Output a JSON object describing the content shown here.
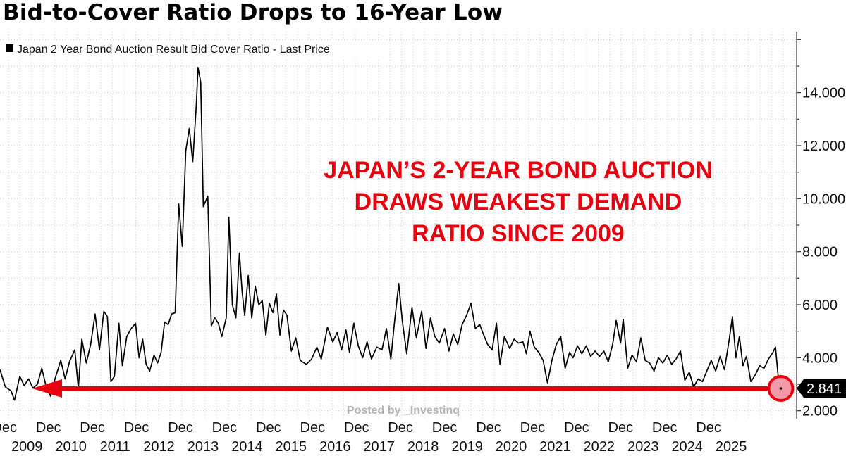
{
  "chart_data": {
    "type": "line",
    "title": "Bid-to-Cover Ratio Drops to 16-Year Low",
    "series": [
      {
        "name": "Japan 2 Year Bond Auction Result Bid Cover Ratio - Last Price",
        "color": "#000000",
        "points": [
          [
            2009.0,
            3.55
          ],
          [
            2009.12,
            2.9
          ],
          [
            2009.25,
            2.75
          ],
          [
            2009.33,
            2.4
          ],
          [
            2009.45,
            3.3
          ],
          [
            2009.55,
            2.95
          ],
          [
            2009.65,
            3.2
          ],
          [
            2009.75,
            2.85
          ],
          [
            2009.85,
            3.0
          ],
          [
            2009.95,
            3.6
          ],
          [
            2010.05,
            2.9
          ],
          [
            2010.15,
            2.55
          ],
          [
            2010.25,
            3.2
          ],
          [
            2010.38,
            3.9
          ],
          [
            2010.48,
            3.2
          ],
          [
            2010.58,
            3.85
          ],
          [
            2010.7,
            4.3
          ],
          [
            2010.78,
            2.85
          ],
          [
            2010.86,
            4.7
          ],
          [
            2010.96,
            3.8
          ],
          [
            2011.06,
            4.5
          ],
          [
            2011.16,
            5.65
          ],
          [
            2011.26,
            4.3
          ],
          [
            2011.36,
            5.75
          ],
          [
            2011.44,
            5.55
          ],
          [
            2011.52,
            3.1
          ],
          [
            2011.6,
            3.3
          ],
          [
            2011.7,
            5.3
          ],
          [
            2011.78,
            3.7
          ],
          [
            2011.88,
            4.8
          ],
          [
            2011.98,
            5.1
          ],
          [
            2012.08,
            5.3
          ],
          [
            2012.16,
            4.0
          ],
          [
            2012.24,
            4.7
          ],
          [
            2012.32,
            3.75
          ],
          [
            2012.4,
            3.5
          ],
          [
            2012.5,
            4.1
          ],
          [
            2012.58,
            3.8
          ],
          [
            2012.66,
            4.2
          ],
          [
            2012.74,
            5.35
          ],
          [
            2012.82,
            5.25
          ],
          [
            2012.9,
            5.65
          ],
          [
            2012.98,
            5.7
          ],
          [
            2013.06,
            9.8
          ],
          [
            2013.14,
            8.2
          ],
          [
            2013.22,
            11.8
          ],
          [
            2013.3,
            12.65
          ],
          [
            2013.38,
            11.4
          ],
          [
            2013.46,
            13.5
          ],
          [
            2013.5,
            14.95
          ],
          [
            2013.56,
            14.4
          ],
          [
            2013.62,
            9.7
          ],
          [
            2013.72,
            10.1
          ],
          [
            2013.8,
            5.2
          ],
          [
            2013.88,
            5.5
          ],
          [
            2013.96,
            5.3
          ],
          [
            2014.04,
            4.8
          ],
          [
            2014.14,
            5.5
          ],
          [
            2014.2,
            9.3
          ],
          [
            2014.28,
            6.0
          ],
          [
            2014.36,
            5.5
          ],
          [
            2014.44,
            7.95
          ],
          [
            2014.5,
            6.5
          ],
          [
            2014.56,
            5.6
          ],
          [
            2014.64,
            7.1
          ],
          [
            2014.72,
            5.5
          ],
          [
            2014.8,
            6.7
          ],
          [
            2014.88,
            6.0
          ],
          [
            2014.96,
            6.15
          ],
          [
            2015.04,
            4.85
          ],
          [
            2015.12,
            6.05
          ],
          [
            2015.2,
            5.7
          ],
          [
            2015.28,
            6.4
          ],
          [
            2015.36,
            4.85
          ],
          [
            2015.44,
            5.8
          ],
          [
            2015.52,
            5.6
          ],
          [
            2015.62,
            4.25
          ],
          [
            2015.72,
            4.75
          ],
          [
            2015.82,
            3.9
          ],
          [
            2015.96,
            3.75
          ],
          [
            2016.08,
            3.95
          ],
          [
            2016.2,
            4.4
          ],
          [
            2016.3,
            3.95
          ],
          [
            2016.44,
            5.15
          ],
          [
            2016.56,
            4.6
          ],
          [
            2016.66,
            4.95
          ],
          [
            2016.76,
            4.3
          ],
          [
            2016.86,
            5.05
          ],
          [
            2016.94,
            4.2
          ],
          [
            2017.04,
            5.3
          ],
          [
            2017.14,
            4.45
          ],
          [
            2017.24,
            4.0
          ],
          [
            2017.34,
            4.6
          ],
          [
            2017.44,
            3.95
          ],
          [
            2017.56,
            4.4
          ],
          [
            2017.68,
            4.3
          ],
          [
            2017.78,
            5.1
          ],
          [
            2017.88,
            3.95
          ],
          [
            2017.96,
            5.3
          ],
          [
            2018.06,
            6.8
          ],
          [
            2018.14,
            5.4
          ],
          [
            2018.24,
            4.15
          ],
          [
            2018.36,
            5.9
          ],
          [
            2018.46,
            4.75
          ],
          [
            2018.58,
            5.75
          ],
          [
            2018.68,
            4.35
          ],
          [
            2018.78,
            5.5
          ],
          [
            2018.88,
            4.8
          ],
          [
            2018.98,
            4.55
          ],
          [
            2019.1,
            5.1
          ],
          [
            2019.2,
            4.25
          ],
          [
            2019.3,
            4.9
          ],
          [
            2019.4,
            4.5
          ],
          [
            2019.5,
            5.25
          ],
          [
            2019.6,
            5.6
          ],
          [
            2019.7,
            6.05
          ],
          [
            2019.8,
            5.1
          ],
          [
            2019.9,
            5.25
          ],
          [
            2019.98,
            4.9
          ],
          [
            2020.08,
            4.5
          ],
          [
            2020.18,
            4.3
          ],
          [
            2020.28,
            5.3
          ],
          [
            2020.36,
            3.75
          ],
          [
            2020.46,
            4.8
          ],
          [
            2020.58,
            4.35
          ],
          [
            2020.68,
            4.7
          ],
          [
            2020.78,
            4.55
          ],
          [
            2020.88,
            4.6
          ],
          [
            2020.96,
            4.15
          ],
          [
            2021.04,
            5.0
          ],
          [
            2021.14,
            4.4
          ],
          [
            2021.24,
            4.2
          ],
          [
            2021.34,
            3.9
          ],
          [
            2021.44,
            3.05
          ],
          [
            2021.54,
            3.9
          ],
          [
            2021.64,
            4.5
          ],
          [
            2021.74,
            4.8
          ],
          [
            2021.84,
            3.6
          ],
          [
            2021.94,
            4.2
          ],
          [
            2022.02,
            4.0
          ],
          [
            2022.12,
            4.45
          ],
          [
            2022.22,
            4.15
          ],
          [
            2022.32,
            4.45
          ],
          [
            2022.42,
            4.05
          ],
          [
            2022.52,
            4.25
          ],
          [
            2022.62,
            4.05
          ],
          [
            2022.72,
            4.25
          ],
          [
            2022.82,
            3.85
          ],
          [
            2022.92,
            4.5
          ],
          [
            2023.0,
            5.4
          ],
          [
            2023.1,
            4.55
          ],
          [
            2023.16,
            5.45
          ],
          [
            2023.26,
            3.6
          ],
          [
            2023.36,
            4.1
          ],
          [
            2023.46,
            3.85
          ],
          [
            2023.56,
            4.75
          ],
          [
            2023.66,
            3.9
          ],
          [
            2023.76,
            3.8
          ],
          [
            2023.86,
            3.5
          ],
          [
            2023.96,
            4.0
          ],
          [
            2024.06,
            3.8
          ],
          [
            2024.16,
            4.1
          ],
          [
            2024.26,
            3.75
          ],
          [
            2024.36,
            3.95
          ],
          [
            2024.46,
            4.25
          ],
          [
            2024.56,
            3.15
          ],
          [
            2024.66,
            3.45
          ],
          [
            2024.76,
            2.9
          ],
          [
            2024.86,
            3.2
          ],
          [
            2024.96,
            3.1
          ],
          [
            2025.06,
            3.5
          ],
          [
            2025.16,
            3.9
          ],
          [
            2025.26,
            3.5
          ],
          [
            2025.36,
            4.05
          ],
          [
            2025.46,
            3.55
          ],
          [
            2025.56,
            4.6
          ],
          [
            2025.64,
            5.55
          ],
          [
            2025.72,
            4.0
          ],
          [
            2025.8,
            4.8
          ],
          [
            2025.88,
            3.7
          ],
          [
            2025.96,
            4.05
          ],
          [
            2026.06,
            3.1
          ],
          [
            2026.16,
            3.35
          ],
          [
            2026.26,
            3.7
          ],
          [
            2026.36,
            3.6
          ],
          [
            2026.46,
            3.95
          ],
          [
            2026.56,
            4.2
          ],
          [
            2026.62,
            4.4
          ],
          [
            2026.68,
            3.3
          ],
          [
            2026.74,
            2.841
          ]
        ]
      }
    ],
    "last_value": 2.841,
    "last_value_label": "2.841",
    "yticks": [
      {
        "value": 2,
        "label": "2.000"
      },
      {
        "value": 4,
        "label": "4.000"
      },
      {
        "value": 6,
        "label": "6.000"
      },
      {
        "value": 8,
        "label": "8.000"
      },
      {
        "value": 10,
        "label": "10.000"
      },
      {
        "value": 12,
        "label": "12.000"
      },
      {
        "value": 14,
        "label": "14.000"
      }
    ],
    "ylim": [
      1.7,
      16.3
    ],
    "xlim": [
      2009.0,
      2027.1
    ],
    "xticks": [
      {
        "pos": 2009.1,
        "month": "Dec",
        "year": "2009"
      },
      {
        "pos": 2010.1,
        "month": "Dec",
        "year": "2010"
      },
      {
        "pos": 2011.1,
        "month": "Dec",
        "year": "2011"
      },
      {
        "pos": 2012.1,
        "month": "Dec",
        "year": "2012"
      },
      {
        "pos": 2013.1,
        "month": "Dec",
        "year": "2013"
      },
      {
        "pos": 2014.1,
        "month": "Dec",
        "year": "2014"
      },
      {
        "pos": 2015.1,
        "month": "Dec",
        "year": "2015"
      },
      {
        "pos": 2016.1,
        "month": "Dec",
        "year": "2016"
      },
      {
        "pos": 2017.1,
        "month": "Dec",
        "year": "2017"
      },
      {
        "pos": 2018.1,
        "month": "Dec",
        "year": "2018"
      },
      {
        "pos": 2019.1,
        "month": "Dec",
        "year": "2019"
      },
      {
        "pos": 2020.1,
        "month": "Dec",
        "year": "2020"
      },
      {
        "pos": 2021.1,
        "month": "Dec",
        "year": "2021"
      },
      {
        "pos": 2022.1,
        "month": "Dec",
        "year": "2022"
      },
      {
        "pos": 2023.1,
        "month": "Dec",
        "year": "2023"
      },
      {
        "pos": 2024.1,
        "month": "Dec",
        "year": "2024"
      },
      {
        "pos": 2025.1,
        "month": "Dec",
        "year": "2025"
      }
    ],
    "annotation": {
      "lines": [
        "JAPAN’S 2-YEAR BOND AUCTION",
        "DRAWS WEAKEST DEMAND",
        "RATIO SINCE 2009"
      ],
      "color": "#e8000e"
    },
    "arrow": {
      "from_x": 2026.74,
      "to_x": 2010.25,
      "y": 2.841,
      "color": "#e8000e"
    },
    "watermark": "Posted by _Investinq",
    "grid": true,
    "legend": "top-left",
    "xlabel": "",
    "ylabel": ""
  }
}
